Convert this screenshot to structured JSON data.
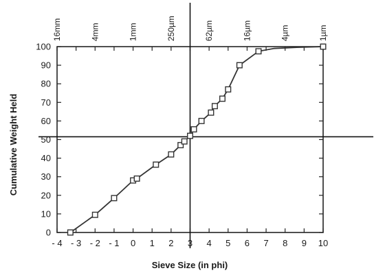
{
  "chart_data": {
    "type": "line",
    "title": "",
    "xlabel": "Sieve Size (in phi)",
    "ylabel": "Cumulative Weight Held",
    "xlim": [
      -4,
      10
    ],
    "ylim": [
      0,
      100
    ],
    "x_ticks": [
      "- 4",
      "- 3",
      "- 2",
      "- 1",
      "0",
      "1",
      "2",
      "3",
      "4",
      "5",
      "6",
      "7",
      "8",
      "9",
      "10"
    ],
    "y_ticks": [
      "0",
      "10",
      "20",
      "30",
      "40",
      "50",
      "60",
      "70",
      "80",
      "90",
      "100"
    ],
    "top_axis": {
      "labels": [
        {
          "text": "16mm",
          "phi": -4
        },
        {
          "text": "4mm",
          "phi": -2
        },
        {
          "text": "1mm",
          "phi": 0
        },
        {
          "text": "250µm",
          "phi": 2
        },
        {
          "text": "62µm",
          "phi": 4
        },
        {
          "text": "16µm",
          "phi": 6
        },
        {
          "text": "4µm",
          "phi": 8
        },
        {
          "text": "1µm",
          "phi": 10
        }
      ]
    },
    "reference_lines": {
      "vertical_x": 3,
      "horizontal_y": 51.5
    },
    "grid": false,
    "series": [
      {
        "color": "#333333",
        "markers": "square",
        "points": [
          {
            "x": -3.3,
            "y": 0
          },
          {
            "x": -2.0,
            "y": 9.5
          },
          {
            "x": -1.0,
            "y": 18.5
          },
          {
            "x": 0.0,
            "y": 28
          },
          {
            "x": 0.2,
            "y": 29
          },
          {
            "x": 1.2,
            "y": 36.5
          },
          {
            "x": 2.0,
            "y": 42
          },
          {
            "x": 2.5,
            "y": 47
          },
          {
            "x": 2.7,
            "y": 49
          },
          {
            "x": 3.0,
            "y": 52
          },
          {
            "x": 3.2,
            "y": 55.5
          },
          {
            "x": 3.6,
            "y": 60
          },
          {
            "x": 4.1,
            "y": 64.5
          },
          {
            "x": 4.3,
            "y": 68
          },
          {
            "x": 4.7,
            "y": 72
          },
          {
            "x": 5.0,
            "y": 77
          },
          {
            "x": 5.6,
            "y": 90
          },
          {
            "x": 6.6,
            "y": 97.5
          },
          {
            "x": 10.0,
            "y": 100
          }
        ],
        "smooth_tail": [
          {
            "x": 7.4,
            "y": 99
          },
          {
            "x": 8.6,
            "y": 99.6
          }
        ]
      }
    ]
  }
}
